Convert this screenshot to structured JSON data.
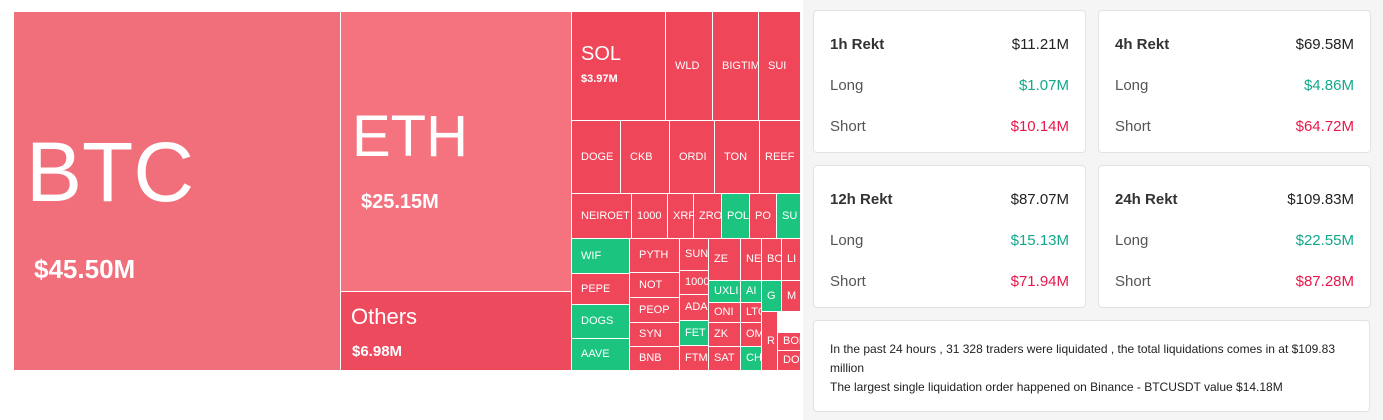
{
  "treemap": {
    "tiles": [
      {
        "label": "BTC",
        "value": "$45.50M"
      },
      {
        "label": "ETH",
        "value": "$25.15M"
      },
      {
        "label": "Others",
        "value": "$6.98M"
      },
      {
        "label": "SOL",
        "value": "$3.97M"
      },
      {
        "label": "WLD"
      },
      {
        "label": "BIGTIM"
      },
      {
        "label": "SUI"
      },
      {
        "label": "DOGE"
      },
      {
        "label": "CKB"
      },
      {
        "label": "ORDI"
      },
      {
        "label": "TON"
      },
      {
        "label": "REEF"
      },
      {
        "label": "NEIROET"
      },
      {
        "label": "1000"
      },
      {
        "label": "XRF"
      },
      {
        "label": "ZRO"
      },
      {
        "label": "POL"
      },
      {
        "label": "PO"
      },
      {
        "label": "SU"
      },
      {
        "label": "WIF"
      },
      {
        "label": "PEPE"
      },
      {
        "label": "DOGS"
      },
      {
        "label": "AAVE"
      },
      {
        "label": "PYTH"
      },
      {
        "label": "NOT"
      },
      {
        "label": "PEOP"
      },
      {
        "label": "SYN"
      },
      {
        "label": "BNB"
      },
      {
        "label": "SUNI"
      },
      {
        "label": "1000"
      },
      {
        "label": "ADA"
      },
      {
        "label": "FET"
      },
      {
        "label": "FTM"
      },
      {
        "label": "ZE"
      },
      {
        "label": "UXLI"
      },
      {
        "label": "ONI"
      },
      {
        "label": "ZK"
      },
      {
        "label": "SAT"
      },
      {
        "label": "NE"
      },
      {
        "label": "AI"
      },
      {
        "label": "LTO"
      },
      {
        "label": "OM"
      },
      {
        "label": "CHI"
      },
      {
        "label": "BO"
      },
      {
        "label": "G"
      },
      {
        "label": "R"
      },
      {
        "label": "LI"
      },
      {
        "label": "M"
      },
      {
        "label": "BON"
      },
      {
        "label": "DOT"
      }
    ]
  },
  "cards": [
    {
      "title": "1h Rekt",
      "total": "$11.21M",
      "rows": [
        {
          "label": "Long",
          "value": "$1.07M"
        },
        {
          "label": "Short",
          "value": "$10.14M"
        }
      ]
    },
    {
      "title": "4h Rekt",
      "total": "$69.58M",
      "rows": [
        {
          "label": "Long",
          "value": "$4.86M"
        },
        {
          "label": "Short",
          "value": "$64.72M"
        }
      ]
    },
    {
      "title": "12h Rekt",
      "total": "$87.07M",
      "rows": [
        {
          "label": "Long",
          "value": "$15.13M"
        },
        {
          "label": "Short",
          "value": "$71.94M"
        }
      ]
    },
    {
      "title": "24h Rekt",
      "total": "$109.83M",
      "rows": [
        {
          "label": "Long",
          "value": "$22.55M"
        },
        {
          "label": "Short",
          "value": "$87.28M"
        }
      ]
    }
  ],
  "summary": {
    "line1": "In the past 24 hours , 31 328 traders were liquidated , the total liquidations comes in at $109.83 million",
    "line2": "The largest single liquidation order happened on Binance - BTCUSDT value $14.18M"
  }
}
